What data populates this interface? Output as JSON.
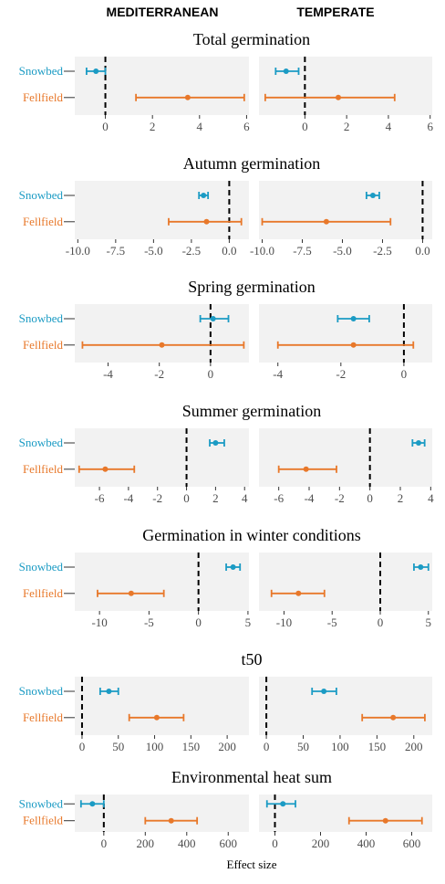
{
  "strips": [
    "MEDITERRANEAN",
    "TEMPERATE"
  ],
  "xlabel": "Effect size",
  "colors": {
    "Snowbed": "#1b9bc4",
    "Fellfield": "#e8782a",
    "panel": "#f2f2f2",
    "axis": "#333333",
    "text": "#4d4d4d"
  },
  "chart_data": [
    {
      "type": "scatter",
      "title": "Total germination",
      "categories": [
        "Snowbed",
        "Fellfield"
      ],
      "panels": [
        {
          "name": "MEDITERRANEAN",
          "xlim": [
            -1.3,
            6.1
          ],
          "ticks": [
            0,
            2,
            4,
            6
          ],
          "tick_labels": [
            "0",
            "2",
            "4",
            "6"
          ],
          "estimates": {
            "Snowbed": [
              -0.4,
              -0.8,
              0.0
            ],
            "Fellfield": [
              3.5,
              1.3,
              5.9
            ]
          }
        },
        {
          "name": "TEMPERATE",
          "xlim": [
            -2.2,
            6.1
          ],
          "ticks": [
            0,
            2,
            4,
            6
          ],
          "tick_labels": [
            "0",
            "2",
            "4",
            "6"
          ],
          "estimates": {
            "Snowbed": [
              -0.9,
              -1.4,
              -0.3
            ],
            "Fellfield": [
              1.6,
              -1.9,
              4.3
            ]
          }
        }
      ]
    },
    {
      "type": "scatter",
      "title": "Autumn germination",
      "categories": [
        "Snowbed",
        "Fellfield"
      ],
      "panels": [
        {
          "name": "MEDITERRANEAN",
          "xlim": [
            -10.2,
            1.3
          ],
          "ticks": [
            -10.0,
            -7.5,
            -5.0,
            -2.5,
            0.0
          ],
          "tick_labels": [
            "-10.0",
            "-7.5",
            "-5.0",
            "-2.5",
            "0.0"
          ],
          "estimates": {
            "Snowbed": [
              -1.7,
              -2.0,
              -1.4
            ],
            "Fellfield": [
              -1.5,
              -4.0,
              0.8
            ]
          }
        },
        {
          "name": "TEMPERATE",
          "xlim": [
            -10.2,
            0.6
          ],
          "ticks": [
            -10.0,
            -7.5,
            -5.0,
            -2.5,
            0.0
          ],
          "tick_labels": [
            "-10.0",
            "-7.5",
            "-5.0",
            "-2.5",
            "0.0"
          ],
          "estimates": {
            "Snowbed": [
              -3.1,
              -3.5,
              -2.7
            ],
            "Fellfield": [
              -6.0,
              -10.0,
              -2.0
            ]
          }
        }
      ]
    },
    {
      "type": "scatter",
      "title": "Spring germination",
      "categories": [
        "Snowbed",
        "Fellfield"
      ],
      "panels": [
        {
          "name": "MEDITERRANEAN",
          "xlim": [
            -5.3,
            1.5
          ],
          "ticks": [
            -4,
            -2,
            0
          ],
          "tick_labels": [
            "-4",
            "-2",
            "0"
          ],
          "estimates": {
            "Snowbed": [
              0.1,
              -0.4,
              0.7
            ],
            "Fellfield": [
              -1.9,
              -5.0,
              1.3
            ]
          }
        },
        {
          "name": "TEMPERATE",
          "xlim": [
            -4.6,
            0.9
          ],
          "ticks": [
            -4,
            -2,
            0
          ],
          "tick_labels": [
            "-4",
            "-2",
            "0"
          ],
          "estimates": {
            "Snowbed": [
              -1.6,
              -2.1,
              -1.1
            ],
            "Fellfield": [
              -1.6,
              -4.0,
              0.3
            ]
          }
        }
      ]
    },
    {
      "type": "scatter",
      "title": "Summer germination",
      "categories": [
        "Snowbed",
        "Fellfield"
      ],
      "panels": [
        {
          "name": "MEDITERRANEAN",
          "xlim": [
            -7.7,
            4.3
          ],
          "ticks": [
            -6,
            -4,
            -2,
            0,
            2,
            4
          ],
          "tick_labels": [
            "-6",
            "-4",
            "-2",
            "0",
            "2",
            "4"
          ],
          "estimates": {
            "Snowbed": [
              2.0,
              1.6,
              2.6
            ],
            "Fellfield": [
              -5.6,
              -7.4,
              -3.6
            ]
          }
        },
        {
          "name": "TEMPERATE",
          "xlim": [
            -7.3,
            4.1
          ],
          "ticks": [
            -6,
            -4,
            -2,
            0,
            2,
            4
          ],
          "tick_labels": [
            "-6",
            "-4",
            "-2",
            "0",
            "2",
            "4"
          ],
          "estimates": {
            "Snowbed": [
              3.2,
              2.8,
              3.6
            ],
            "Fellfield": [
              -4.2,
              -6.0,
              -2.2
            ]
          }
        }
      ]
    },
    {
      "type": "scatter",
      "title": "Germination in winter conditions",
      "categories": [
        "Snowbed",
        "Fellfield"
      ],
      "panels": [
        {
          "name": "MEDITERRANEAN",
          "xlim": [
            -12.5,
            5.1
          ],
          "ticks": [
            -10,
            -5,
            0,
            5
          ],
          "tick_labels": [
            "-10",
            "-5",
            "0",
            "5"
          ],
          "estimates": {
            "Snowbed": [
              3.5,
              2.8,
              4.2
            ],
            "Fellfield": [
              -6.8,
              -10.2,
              -3.5
            ]
          }
        },
        {
          "name": "TEMPERATE",
          "xlim": [
            -12.6,
            5.4
          ],
          "ticks": [
            -10,
            -5,
            0,
            5
          ],
          "tick_labels": [
            "-10",
            "-5",
            "0",
            "5"
          ],
          "estimates": {
            "Snowbed": [
              4.2,
              3.5,
              5.0
            ],
            "Fellfield": [
              -8.5,
              -11.3,
              -5.8
            ]
          }
        }
      ]
    },
    {
      "type": "scatter",
      "title": "t50",
      "categories": [
        "Snowbed",
        "Fellfield"
      ],
      "panels": [
        {
          "name": "MEDITERRANEAN",
          "xlim": [
            -10,
            230
          ],
          "ticks": [
            0,
            50,
            100,
            150,
            200
          ],
          "tick_labels": [
            "0",
            "50",
            "100",
            "150",
            "200"
          ],
          "estimates": {
            "Snowbed": [
              37,
              25,
              50
            ],
            "Fellfield": [
              103,
              65,
              140
            ]
          }
        },
        {
          "name": "TEMPERATE",
          "xlim": [
            -10,
            225
          ],
          "ticks": [
            0,
            50,
            100,
            150,
            200
          ],
          "tick_labels": [
            "0",
            "50",
            "100",
            "150",
            "200"
          ],
          "estimates": {
            "Snowbed": [
              78,
              62,
              95
            ],
            "Fellfield": [
              172,
              130,
              215
            ]
          }
        }
      ]
    },
    {
      "type": "scatter",
      "title": "Environmental heat sum",
      "categories": [
        "Snowbed",
        "Fellfield"
      ],
      "panels": [
        {
          "name": "MEDITERRANEAN",
          "xlim": [
            -140,
            700
          ],
          "ticks": [
            0,
            200,
            400,
            600
          ],
          "tick_labels": [
            "0",
            "200",
            "400",
            "600"
          ],
          "estimates": {
            "Snowbed": [
              -55,
              -110,
              0
            ],
            "Fellfield": [
              325,
              200,
              450
            ]
          }
        },
        {
          "name": "TEMPERATE",
          "xlim": [
            -70,
            690
          ],
          "ticks": [
            0,
            200,
            400,
            600
          ],
          "tick_labels": [
            "0",
            "200",
            "400",
            "600"
          ],
          "estimates": {
            "Snowbed": [
              35,
              -35,
              90
            ],
            "Fellfield": [
              485,
              325,
              645
            ]
          }
        }
      ]
    }
  ]
}
